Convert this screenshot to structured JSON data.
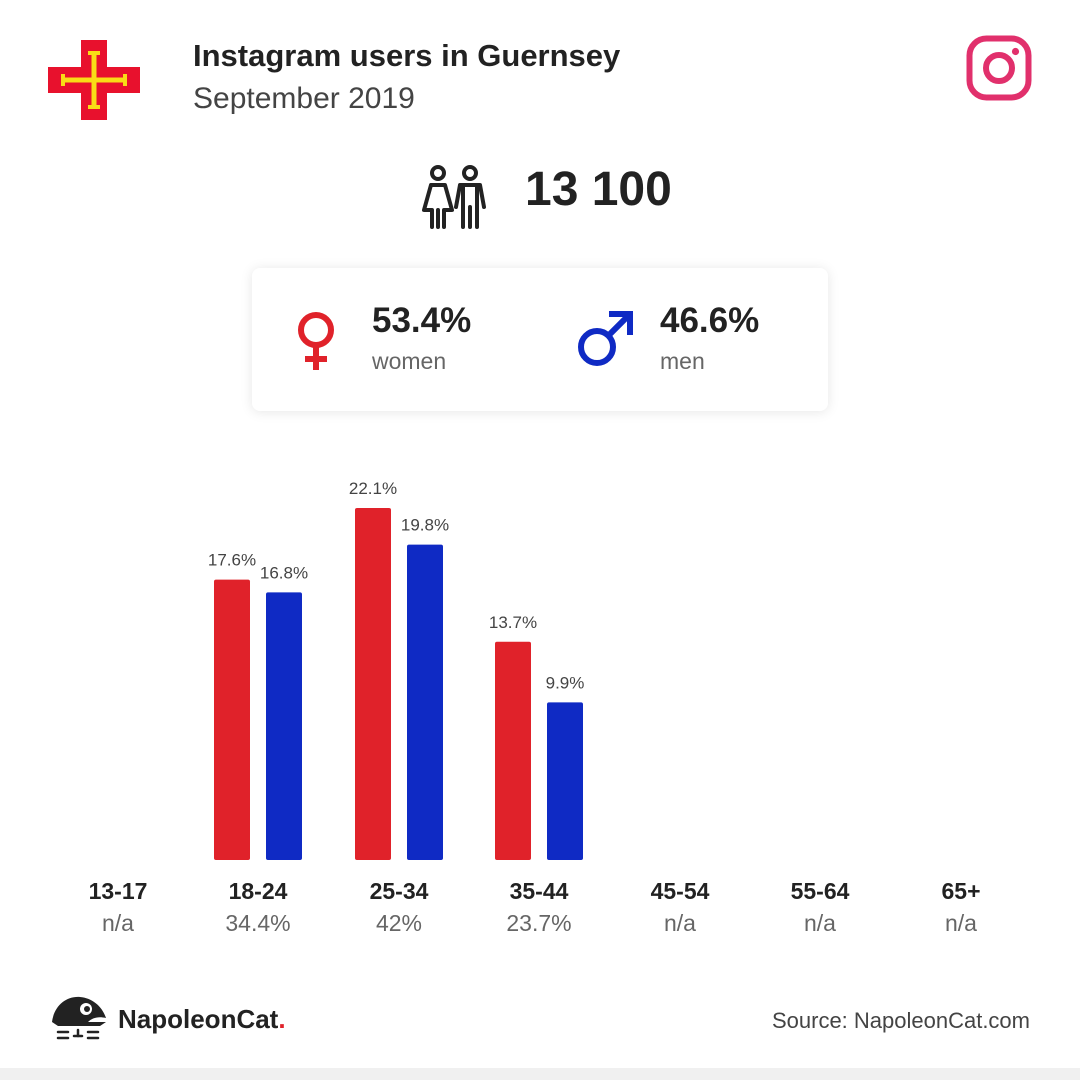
{
  "header": {
    "title": "Instagram users in Guernsey",
    "subtitle": "September 2019"
  },
  "total_users": "13 100",
  "gender": {
    "women": {
      "pct": "53.4%",
      "label": "women"
    },
    "men": {
      "pct": "46.6%",
      "label": "men"
    }
  },
  "footer": {
    "brand": "NapoleonCat",
    "brand_dot": ".",
    "source": "Source: NapoleonCat.com"
  },
  "colors": {
    "women": "#e0222a",
    "men": "#0f2ac4",
    "instagram": "#e1306c",
    "flag_red": "#e8112d",
    "flag_gold": "#f9dd16"
  },
  "chart_data": {
    "type": "bar",
    "categories": [
      "13-17",
      "18-24",
      "25-34",
      "35-44",
      "45-54",
      "55-64",
      "65+"
    ],
    "category_totals": [
      "n/a",
      "34.4%",
      "42%",
      "23.7%",
      "n/a",
      "n/a",
      "n/a"
    ],
    "series": [
      {
        "values": [
          null,
          17.6,
          22.1,
          13.7,
          null,
          null,
          null
        ],
        "labels": [
          "",
          "17.6%",
          "22.1%",
          "13.7%",
          "",
          "",
          ""
        ]
      },
      {
        "values": [
          null,
          16.8,
          19.8,
          9.9,
          null,
          null,
          null
        ],
        "labels": [
          "",
          "16.8%",
          "19.8%",
          "9.9%",
          "",
          "",
          ""
        ]
      }
    ],
    "ylim": [
      0,
      22.1
    ],
    "grid": false,
    "legend": "none"
  }
}
